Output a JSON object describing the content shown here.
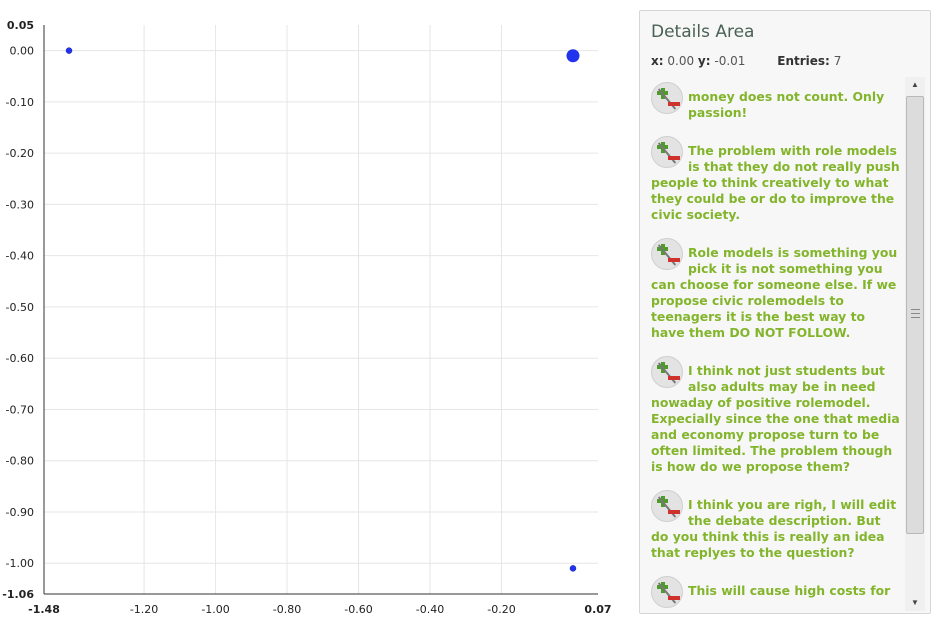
{
  "chart_data": {
    "type": "scatter",
    "x_range": [
      -1.48,
      0.07
    ],
    "y_range": [
      -1.06,
      0.05
    ],
    "x_ticks": [
      {
        "value": -1.48,
        "label": "-1.48",
        "bold": true
      },
      {
        "value": -1.2,
        "label": "-1.20"
      },
      {
        "value": -1.0,
        "label": "-1.00"
      },
      {
        "value": -0.8,
        "label": "-0.80"
      },
      {
        "value": -0.6,
        "label": "-0.60"
      },
      {
        "value": -0.4,
        "label": "-0.40"
      },
      {
        "value": -0.2,
        "label": "-0.20"
      },
      {
        "value": 0.07,
        "label": "0.07",
        "bold": true
      }
    ],
    "y_ticks": [
      {
        "value": 0.05,
        "label": "0.05",
        "bold": true
      },
      {
        "value": 0.0,
        "label": "0.00"
      },
      {
        "value": -0.1,
        "label": "-0.10"
      },
      {
        "value": -0.2,
        "label": "-0.20"
      },
      {
        "value": -0.3,
        "label": "-0.30"
      },
      {
        "value": -0.4,
        "label": "-0.40"
      },
      {
        "value": -0.5,
        "label": "-0.50"
      },
      {
        "value": -0.6,
        "label": "-0.60"
      },
      {
        "value": -0.7,
        "label": "-0.70"
      },
      {
        "value": -0.8,
        "label": "-0.80"
      },
      {
        "value": -0.9,
        "label": "-0.90"
      },
      {
        "value": -1.0,
        "label": "-1.00"
      },
      {
        "value": -1.06,
        "label": "-1.06",
        "bold": true
      }
    ],
    "grid": true,
    "point_color": "#2233ee",
    "points": [
      {
        "x": -1.41,
        "y": 0.0,
        "size": "small"
      },
      {
        "x": 0.0,
        "y": -0.01,
        "size": "large"
      },
      {
        "x": 0.0,
        "y": -1.01,
        "size": "small"
      }
    ]
  },
  "details": {
    "title": "Details Area",
    "x_label": "x:",
    "x_value": "0.00",
    "y_label": "y:",
    "y_value": "-0.01",
    "entries_label": "Entries:",
    "entries_count": "7",
    "entries": [
      {
        "icon": "plus-minus-vote-icon",
        "text": "money does not count. Only passion!"
      },
      {
        "icon": "plus-minus-vote-icon",
        "text": "The problem with role models is that they do not really push people to think creatively to what they could be or do to improve the civic society."
      },
      {
        "icon": "plus-minus-vote-icon",
        "text": "Role models is something you pick it is not something you can choose for someone else. If we propose civic rolemodels to teenagers it is the best way to have them DO NOT FOLLOW."
      },
      {
        "icon": "plus-minus-vote-icon",
        "text": "I think not just students but also adults may be in need nowaday of positive rolemodel. Expecially since the one that media and economy propose turn to be often limited. The problem though is how do we propose them?"
      },
      {
        "icon": "plus-minus-vote-icon",
        "text": "I think you are righ, I will edit the debate description. But do you think this is really an idea that replyes to the question?"
      },
      {
        "icon": "plus-minus-vote-icon",
        "text": "This will cause high costs for"
      }
    ]
  }
}
